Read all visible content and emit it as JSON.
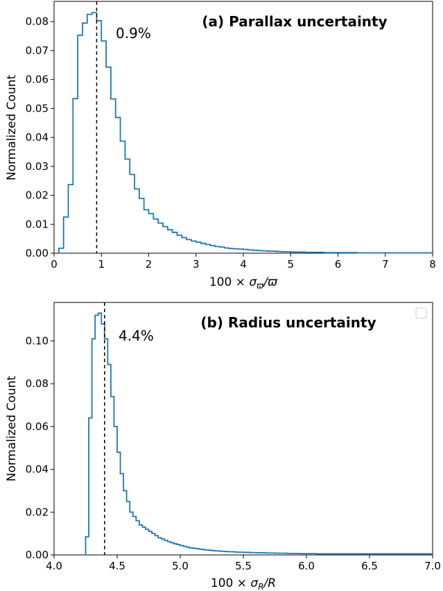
{
  "chart_data": [
    {
      "type": "histogram",
      "title": "(a) Parallax uncertainty",
      "annotation": "0.9%",
      "marker_x": 0.9,
      "xlabel_parts": {
        "prefix": "100 × ",
        "sym": "σ",
        "sub": "ϖ",
        "suffix": "/ϖ"
      },
      "ylabel": "Normalized Count",
      "xlim": [
        0,
        8
      ],
      "ylim": [
        0,
        0.087
      ],
      "xticks": [
        0,
        1,
        2,
        3,
        4,
        5,
        6,
        7,
        8
      ],
      "xtick_labels": [
        "0",
        "1",
        "2",
        "3",
        "4",
        "5",
        "6",
        "7",
        "8"
      ],
      "yticks": [
        0,
        0.01,
        0.02,
        0.03,
        0.04,
        0.05,
        0.06,
        0.07,
        0.08
      ],
      "ytick_labels": [
        "0.00",
        "0.01",
        "0.02",
        "0.03",
        "0.04",
        "0.05",
        "0.06",
        "0.07",
        "0.08"
      ],
      "bin_start": 0.1,
      "bin_width": 0.1,
      "values": [
        0.0017,
        0.0125,
        0.0237,
        0.0534,
        0.0753,
        0.0795,
        0.0825,
        0.0831,
        0.0803,
        0.0733,
        0.0643,
        0.0533,
        0.0469,
        0.0387,
        0.0325,
        0.0272,
        0.0222,
        0.0189,
        0.015,
        0.0137,
        0.0118,
        0.0104,
        0.0092,
        0.0081,
        0.0072,
        0.0062,
        0.0054,
        0.0047,
        0.0042,
        0.0038,
        0.0034,
        0.003,
        0.0026,
        0.0023,
        0.0021,
        0.0018,
        0.0016,
        0.0015,
        0.0014,
        0.0013,
        0.0011,
        0.001,
        0.0009,
        0.0008,
        0.0007,
        0.0007,
        0.0006,
        0.0005,
        0.0005,
        0.0004,
        0.0004,
        0.0004,
        0.0003,
        0.0003,
        0.0003,
        0.0003,
        0.0002,
        0.0002,
        0.0002,
        0.0002,
        0.0002,
        0.0002,
        0.0002,
        0.0001,
        0.0001,
        0.0001,
        0.0001,
        0.0001,
        0.0001,
        0.0001,
        0.0001,
        0.0001,
        0.0001,
        0.0001,
        0.0001,
        0.0001,
        0.0001,
        0.0001,
        0.0001
      ]
    },
    {
      "type": "histogram",
      "title": "(b) Radius uncertainty",
      "annotation": "4.4%",
      "marker_x": 4.4,
      "xlabel_parts": {
        "prefix": "100 × ",
        "sym": "σ",
        "sub": "R",
        "suffix": "/R"
      },
      "ylabel": "Normalized Count",
      "xlim": [
        4.0,
        7.0
      ],
      "ylim": [
        0,
        0.118
      ],
      "xticks": [
        4.0,
        4.5,
        5.0,
        5.5,
        6.0,
        6.5,
        7.0
      ],
      "xtick_labels": [
        "4.0",
        "4.5",
        "5.0",
        "5.5",
        "6.0",
        "6.5",
        "7.0"
      ],
      "yticks": [
        0,
        0.02,
        0.04,
        0.06,
        0.08,
        0.1
      ],
      "ytick_labels": [
        "0.00",
        "0.02",
        "0.04",
        "0.06",
        "0.08",
        "0.10"
      ],
      "legend": "empty box, top-right",
      "bin_start": 4.25,
      "bin_width": 0.025,
      "values": [
        0.0085,
        0.064,
        0.101,
        0.112,
        0.113,
        0.108,
        0.101,
        0.089,
        0.074,
        0.06,
        0.048,
        0.038,
        0.03,
        0.025,
        0.02,
        0.018,
        0.016,
        0.014,
        0.013,
        0.012,
        0.011,
        0.01,
        0.009,
        0.008,
        0.0075,
        0.0068,
        0.0062,
        0.0057,
        0.0052,
        0.0048,
        0.0044,
        0.004,
        0.0036,
        0.0033,
        0.0031,
        0.0029,
        0.0027,
        0.0025,
        0.0023,
        0.0022,
        0.002,
        0.0019,
        0.0018,
        0.0017,
        0.0016,
        0.0015,
        0.0015,
        0.0014,
        0.0013,
        0.0013,
        0.0012,
        0.0012,
        0.0011,
        0.0011,
        0.001,
        0.001,
        0.001,
        0.0009,
        0.0009,
        0.0009,
        0.0008,
        0.0008,
        0.0008,
        0.0008,
        0.0007,
        0.0007,
        0.0007,
        0.0007,
        0.0006,
        0.0006,
        0.0006,
        0.0006,
        0.0006,
        0.0005,
        0.0005,
        0.0005,
        0.0005,
        0.0005,
        0.0005,
        0.0005,
        0.0005,
        0.0005,
        0.0005,
        0.0005,
        0.0005,
        0.0005,
        0.0005,
        0.0005,
        0.0005,
        0.0005,
        0.0005,
        0.0005,
        0.0005,
        0.0005,
        0.0005,
        0.0005,
        0.0005,
        0.0005,
        0.0005,
        0.0005,
        0.0005,
        0.0005,
        0.0005,
        0.0005,
        0.0005,
        0.0005,
        0.0005,
        0.0005,
        0.0005,
        0.0005
      ],
      "line_color": "#1f77b4"
    }
  ]
}
